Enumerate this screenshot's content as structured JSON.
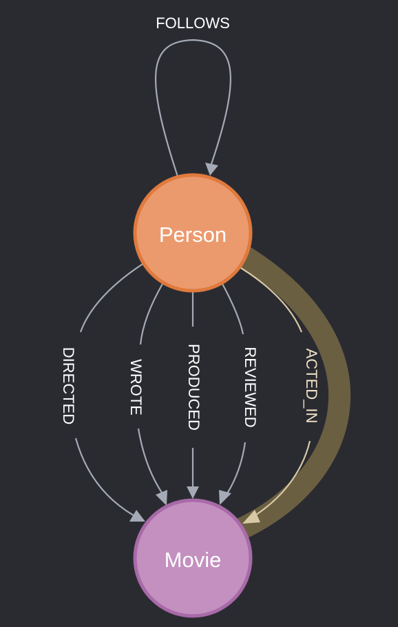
{
  "nodes": {
    "person": {
      "label": "Person",
      "fill": "#eb9a6e",
      "stroke": "#e07a3d"
    },
    "movie": {
      "label": "Movie",
      "fill": "#c390c0",
      "stroke": "#a86aa8"
    }
  },
  "relationships": {
    "follows": "FOLLOWS",
    "directed": "DIRECTED",
    "wrote": "WROTE",
    "produced": "PRODUCED",
    "reviewed": "REVIEWED",
    "acted_in": "ACTED_IN"
  },
  "colors": {
    "background": "#2a2b31",
    "edge": "#a5abb6",
    "selected_edge_halo": "#6b5f42",
    "selected_edge_text": "#f0e2c4"
  }
}
